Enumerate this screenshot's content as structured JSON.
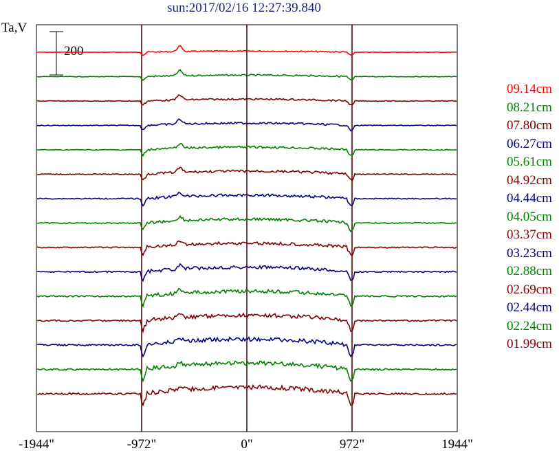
{
  "chart_data": {
    "type": "line",
    "title": "sun:2017/02/16 12:27:39.840",
    "ylabel": "Ta,V",
    "scale_bar_label": "200",
    "x_ticks": [
      "-1944\"",
      "-972\"",
      "0\"",
      "972\"",
      "1944\""
    ],
    "xlim": [
      -1944,
      1944
    ],
    "vertical_lines_at": [
      -972,
      0,
      972
    ],
    "grid": false,
    "legend_position": "right",
    "series": [
      {
        "name": "09.14cm",
        "color": "#ff0000"
      },
      {
        "name": "08.21cm",
        "color": "#008000"
      },
      {
        "name": "07.80cm",
        "color": "#800000"
      },
      {
        "name": "06.27cm",
        "color": "#000080"
      },
      {
        "name": "05.61cm",
        "color": "#008000"
      },
      {
        "name": "04.92cm",
        "color": "#800000"
      },
      {
        "name": "04.44cm",
        "color": "#000080"
      },
      {
        "name": "04.05cm",
        "color": "#008000"
      },
      {
        "name": "03.37cm",
        "color": "#800000"
      },
      {
        "name": "03.23cm",
        "color": "#000080"
      },
      {
        "name": "02.88cm",
        "color": "#008000"
      },
      {
        "name": "02.69cm",
        "color": "#800000"
      },
      {
        "name": "02.44cm",
        "color": "#000080"
      },
      {
        "name": "02.24cm",
        "color": "#008000"
      },
      {
        "name": "01.99cm",
        "color": "#800000"
      }
    ]
  }
}
